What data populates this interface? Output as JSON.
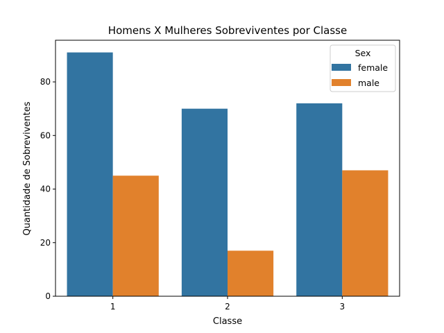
{
  "chart_data": {
    "type": "bar",
    "title": "Homens X Mulheres Sobreviventes por Classe",
    "xlabel": "Classe",
    "ylabel": "Quantidade de Sobreviventes",
    "categories": [
      "1",
      "2",
      "3"
    ],
    "series": [
      {
        "name": "female",
        "color": "#3274a1",
        "values": [
          91,
          70,
          72
        ]
      },
      {
        "name": "male",
        "color": "#e1812c",
        "values": [
          45,
          17,
          47
        ]
      }
    ],
    "ylim": [
      0,
      95.55
    ],
    "yticks": [
      0,
      20,
      40,
      60,
      80
    ],
    "grid": false,
    "legend": {
      "title": "Sex",
      "placement": "top-right"
    }
  }
}
